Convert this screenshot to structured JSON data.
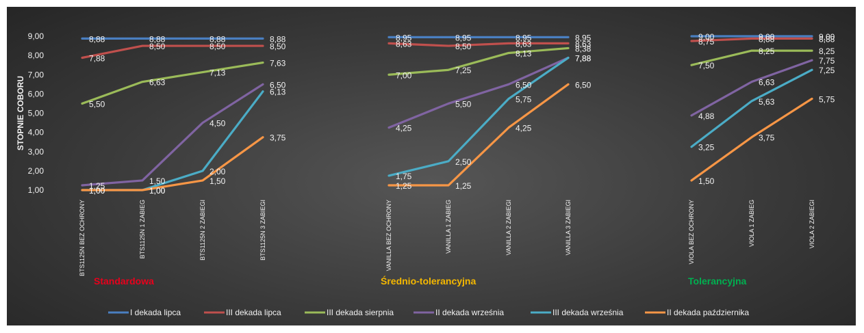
{
  "chart_data": {
    "type": "line",
    "ylabel": "STOPNIE COBORU",
    "ylim": [
      1,
      9
    ],
    "yticks": [
      "1,00",
      "2,00",
      "3,00",
      "4,00",
      "5,00",
      "6,00",
      "7,00",
      "8,00",
      "9,00"
    ],
    "grid": false,
    "legend_position": "bottom",
    "groups": [
      {
        "name": "Standardowa",
        "color": "#e8001c",
        "categories": [
          "BTS1125N BEZ OCHRONY",
          "BTS1125N 1 ZABIEG",
          "BTS1125N 2 ZABIEGI",
          "BTS1125N 3 ZABIEGI"
        ],
        "series": [
          {
            "name": "I dekada lipca",
            "values": [
              8.88,
              8.88,
              8.88,
              8.88
            ],
            "labels": [
              "8,88",
              "8,88",
              "8,88",
              "8,88"
            ]
          },
          {
            "name": "III dekada lipca",
            "values": [
              7.88,
              8.5,
              8.5,
              8.5
            ],
            "labels": [
              "7,88",
              "8,50",
              "8,50",
              "8,50"
            ]
          },
          {
            "name": "III dekada sierpnia",
            "values": [
              5.5,
              6.63,
              7.13,
              7.63
            ],
            "labels": [
              "5,50",
              "6,63",
              "7,13",
              "7,63"
            ]
          },
          {
            "name": "II dekada września",
            "values": [
              1.25,
              1.5,
              4.5,
              6.5
            ],
            "labels": [
              "1,25",
              "1,50",
              "4,50",
              "6,50"
            ]
          },
          {
            "name": "III dekada września",
            "values": [
              1.0,
              1.0,
              2.0,
              6.13
            ],
            "labels": [
              "1,00",
              "1,00",
              "2,00",
              "6,13"
            ]
          },
          {
            "name": "II dekada października",
            "values": [
              1.0,
              1.0,
              1.5,
              3.75
            ],
            "labels": [
              "1,00",
              "1,00",
              "1,50",
              "3,75"
            ]
          }
        ]
      },
      {
        "name": "Średnio-tolerancyjna",
        "color": "#f5b800",
        "categories": [
          "VANILLA BEZ OCHRONY",
          "VANILLA 1 ZABIEG",
          "VANILLA 2 ZABIEGI",
          "VANILLA 3 ZABIEGI"
        ],
        "series": [
          {
            "name": "I dekada lipca",
            "values": [
              8.95,
              8.95,
              8.95,
              8.95
            ],
            "labels": [
              "8,95",
              "8,95",
              "8,95",
              "8,95"
            ]
          },
          {
            "name": "III dekada lipca",
            "values": [
              8.63,
              8.5,
              8.63,
              8.63
            ],
            "labels": [
              "8,63",
              "8,50",
              "8,63",
              "8,63"
            ]
          },
          {
            "name": "III dekada sierpnia",
            "values": [
              7.0,
              7.25,
              8.13,
              8.38
            ],
            "labels": [
              "7,00",
              "7,25",
              "8,13",
              "8,38"
            ]
          },
          {
            "name": "II dekada września",
            "values": [
              4.25,
              5.5,
              6.5,
              7.88
            ],
            "labels": [
              "4,25",
              "5,50",
              "6,50",
              "7,88"
            ]
          },
          {
            "name": "III dekada września",
            "values": [
              1.75,
              2.5,
              5.75,
              7.88
            ],
            "labels": [
              "1,75",
              "2,50",
              "5,75",
              "7,88"
            ]
          },
          {
            "name": "II dekada października",
            "values": [
              1.25,
              1.25,
              4.25,
              6.5
            ],
            "labels": [
              "1,25",
              "1,25",
              "4,25",
              "6,50"
            ]
          }
        ]
      },
      {
        "name": "Tolerancyjna",
        "color": "#00b050",
        "categories": [
          "VIOLA BEZ OCHRONY",
          "VIOLA 1 ZABIEG",
          "VIOLA 2 ZABIEGI"
        ],
        "series": [
          {
            "name": "I dekada lipca",
            "values": [
              9.0,
              9.0,
              9.0
            ],
            "labels": [
              "9,00",
              "9,00",
              "9,00"
            ]
          },
          {
            "name": "III dekada lipca",
            "values": [
              8.75,
              8.88,
              8.88
            ],
            "labels": [
              "8,75",
              "8,88",
              "8,88"
            ]
          },
          {
            "name": "III dekada sierpnia",
            "values": [
              7.5,
              8.25,
              8.25
            ],
            "labels": [
              "7,50",
              "8,25",
              "8,25"
            ]
          },
          {
            "name": "II dekada września",
            "values": [
              4.88,
              6.63,
              7.75
            ],
            "labels": [
              "4,88",
              "6,63",
              "7,75"
            ]
          },
          {
            "name": "III dekada września",
            "values": [
              3.25,
              5.63,
              7.25
            ],
            "labels": [
              "3,25",
              "5,63",
              "7,25"
            ]
          },
          {
            "name": "II dekada października",
            "values": [
              1.5,
              3.75,
              5.75
            ],
            "labels": [
              "1,50",
              "3,75",
              "5,75"
            ]
          }
        ]
      }
    ],
    "legend": [
      {
        "name": "I dekada lipca",
        "color": "#4a7fc1"
      },
      {
        "name": "III dekada lipca",
        "color": "#c0504d"
      },
      {
        "name": "III dekada sierpnia",
        "color": "#9bbb59"
      },
      {
        "name": "II dekada września",
        "color": "#8064a2"
      },
      {
        "name": "III dekada września",
        "color": "#4bacc6"
      },
      {
        "name": "II dekada października",
        "color": "#f79646"
      }
    ]
  }
}
